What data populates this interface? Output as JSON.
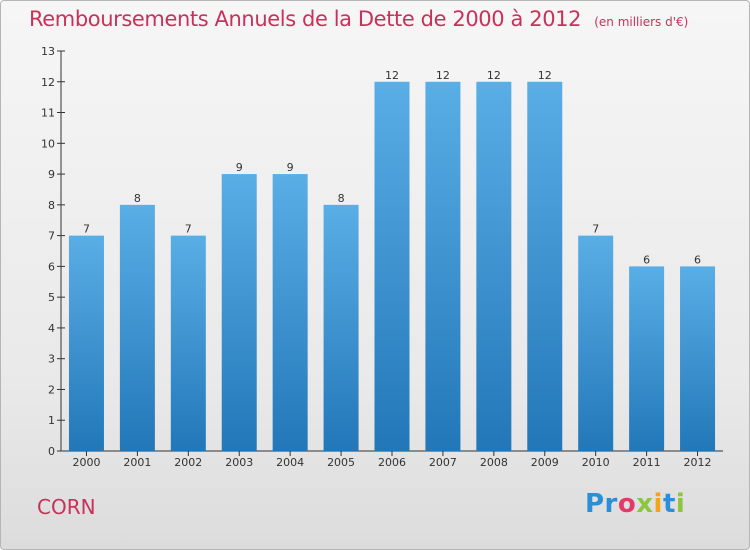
{
  "header": {
    "title": "Remboursements Annuels de la Dette de 2000 à 2012",
    "unit": "(en milliers d'€)"
  },
  "footer": {
    "commune": "CORN",
    "logo_parts": [
      "Pr",
      "o",
      "x",
      "i",
      "t",
      "i"
    ]
  },
  "colors": {
    "title": "#c8325a",
    "bar_top": "#5aaee6",
    "bar_bottom": "#2277b8"
  },
  "chart_data": {
    "type": "bar",
    "title": "Remboursements Annuels de la Dette de 2000 à 2012",
    "xlabel": "",
    "ylabel": "en milliers d'€",
    "categories": [
      "2000",
      "2001",
      "2002",
      "2003",
      "2004",
      "2005",
      "2006",
      "2007",
      "2008",
      "2009",
      "2010",
      "2011",
      "2012"
    ],
    "values": [
      7,
      8,
      7,
      9,
      9,
      8,
      12,
      12,
      12,
      12,
      7,
      6,
      6
    ],
    "ylim": [
      0,
      13
    ],
    "yticks": [
      0,
      1,
      2,
      3,
      4,
      5,
      6,
      7,
      8,
      9,
      10,
      11,
      12,
      13
    ],
    "grid": false,
    "legend": "none"
  }
}
